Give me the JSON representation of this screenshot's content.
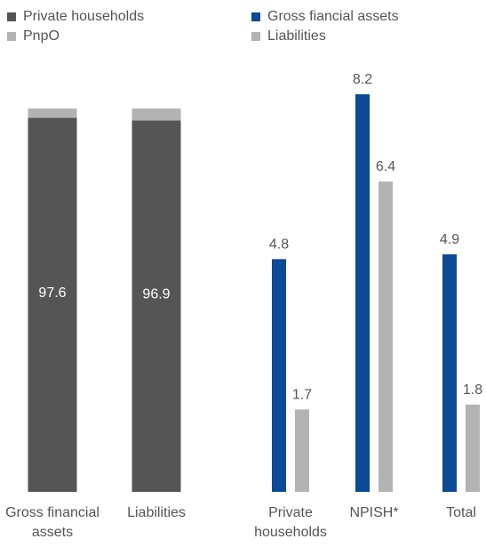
{
  "colors": {
    "dark": "#555555",
    "light": "#b3b3b3",
    "blue": "#0b4a96",
    "text": "#555555",
    "inner_text": "#ffffff"
  },
  "legend_left": [
    {
      "label": "Private households",
      "color": "#555555"
    },
    {
      "label": "PnpO",
      "color": "#b3b3b3"
    }
  ],
  "legend_right": [
    {
      "label": "Gross fiancial assets",
      "color": "#0b4a96"
    },
    {
      "label": "Liabilities",
      "color": "#b3b3b3"
    }
  ],
  "chart_data": [
    {
      "type": "bar",
      "stacked": true,
      "percent": true,
      "categories": [
        "Gross financial assets",
        "Liabilities"
      ],
      "category_lines": [
        [
          "Gross financial",
          "assets"
        ],
        [
          "Liabilities"
        ]
      ],
      "series": [
        {
          "name": "Private households",
          "values": [
            97.6,
            96.9
          ],
          "color": "#555555"
        },
        {
          "name": "PnpO",
          "values": [
            2.4,
            3.1
          ],
          "color": "#b3b3b3"
        }
      ],
      "ylim": [
        0,
        100
      ]
    },
    {
      "type": "bar",
      "categories": [
        "Private households",
        "NPISH*",
        "Total"
      ],
      "category_lines": [
        [
          "Private",
          "households"
        ],
        [
          "NPISH*"
        ],
        [
          "Total"
        ]
      ],
      "series": [
        {
          "name": "Gross fiancial assets",
          "values": [
            4.8,
            8.2,
            4.9
          ],
          "color": "#0b4a96"
        },
        {
          "name": "Liabilities",
          "values": [
            1.7,
            6.4,
            1.8
          ],
          "color": "#b3b3b3"
        }
      ],
      "ylim": [
        0,
        8.2
      ]
    }
  ]
}
